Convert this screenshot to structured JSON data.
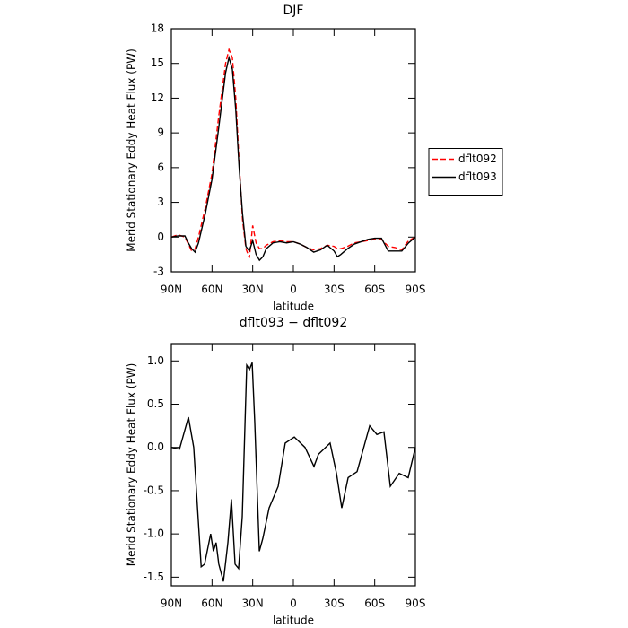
{
  "chart_data": [
    {
      "type": "line",
      "title": "DJF",
      "xlabel": "latitude",
      "ylabel": "Merid Stationary Eddy Heat Flux (PW)",
      "x": [
        90,
        85,
        80,
        77.5,
        75,
        72.5,
        70,
        65,
        60,
        55,
        50,
        47.5,
        45,
        42.5,
        40,
        37.5,
        35,
        32.5,
        30,
        27.5,
        25,
        22.5,
        20,
        15,
        10,
        5,
        0,
        -5,
        -10,
        -15,
        -20,
        -25,
        -30,
        -32.5,
        -35,
        -40,
        -45,
        -50,
        -55,
        -60,
        -65,
        -70,
        -75,
        -80,
        -85,
        -90
      ],
      "series": [
        {
          "name": "dflt092",
          "color": "#ff0000",
          "linestyle": "dashed",
          "values": [
            0,
            0.2,
            0,
            -0.6,
            -1.2,
            -1.0,
            0,
            2.5,
            5.5,
            10.5,
            15.0,
            16.2,
            15.5,
            12,
            6.5,
            1.5,
            -1.0,
            -1.8,
            1.0,
            -0.5,
            -1.0,
            -1.0,
            -0.7,
            -0.4,
            -0.3,
            -0.4,
            -0.4,
            -0.6,
            -0.9,
            -1.1,
            -1.0,
            -0.7,
            -0.8,
            -1.0,
            -1.0,
            -0.8,
            -0.5,
            -0.4,
            -0.3,
            -0.2,
            -0.2,
            -0.8,
            -0.9,
            -1.1,
            -0.3,
            0
          ]
        },
        {
          "name": "dflt093",
          "color": "#000000",
          "linestyle": "solid",
          "values": [
            0,
            0.1,
            0.1,
            -0.5,
            -1.0,
            -1.3,
            -0.5,
            2.0,
            5.0,
            9.5,
            14.2,
            15.5,
            14.5,
            11,
            6,
            2,
            -0.8,
            -1.2,
            -0.3,
            -1.5,
            -2.0,
            -1.7,
            -1.0,
            -0.5,
            -0.4,
            -0.5,
            -0.4,
            -0.6,
            -0.9,
            -1.3,
            -1.1,
            -0.7,
            -1.2,
            -1.7,
            -1.5,
            -1.0,
            -0.6,
            -0.4,
            -0.2,
            -0.1,
            -0.1,
            -1.2,
            -1.2,
            -1.2,
            -0.5,
            0
          ]
        }
      ],
      "xlim": [
        90,
        -90
      ],
      "xticks": [
        {
          "value": 90,
          "label": "90N"
        },
        {
          "value": 60,
          "label": "60N"
        },
        {
          "value": 30,
          "label": "30N"
        },
        0,
        {
          "value": -30,
          "label": "30S"
        },
        {
          "value": -60,
          "label": "60S"
        },
        {
          "value": -90,
          "label": "90S"
        }
      ],
      "ylim": [
        -3,
        18
      ],
      "yticks": [
        -3,
        0,
        3,
        6,
        9,
        12,
        15,
        18
      ],
      "legend": "right"
    },
    {
      "type": "line",
      "title": "dflt093 − dflt092",
      "xlabel": "latitude",
      "ylabel": "Merid Stationary Eddy Heat Flux (PW)",
      "x": [
        90,
        84,
        77.4,
        73.5,
        68,
        65.5,
        61,
        59,
        57,
        55,
        51.6,
        48.3,
        45.7,
        43,
        40.4,
        37.7,
        34.4,
        32.4,
        30.4,
        28.5,
        25.1,
        22.5,
        17.9,
        11.2,
        6,
        -0.7,
        -8.6,
        -15.2,
        -18.5,
        -27.1,
        -31.8,
        -35.7,
        -40.4,
        -47,
        -56.3,
        -61.6,
        -66.8,
        -71.5,
        -78.1,
        -84.7,
        -90
      ],
      "series": [
        {
          "color": "#000000",
          "linestyle": "solid",
          "values": [
            0.0,
            -0.02,
            0.35,
            0.0,
            -1.38,
            -1.35,
            -1.0,
            -1.2,
            -1.1,
            -1.35,
            -1.55,
            -1.1,
            -0.6,
            -1.35,
            -1.4,
            -0.8,
            0.95,
            0.9,
            0.98,
            0.3,
            -1.2,
            -1.05,
            -0.7,
            -0.45,
            0.05,
            0.12,
            0.0,
            -0.22,
            -0.08,
            0.05,
            -0.3,
            -0.7,
            -0.35,
            -0.28,
            0.25,
            0.15,
            0.18,
            -0.45,
            -0.3,
            -0.35,
            0.0
          ]
        }
      ],
      "xlim": [
        90,
        -90
      ],
      "xticks": [
        {
          "value": 90,
          "label": "90N"
        },
        {
          "value": 60,
          "label": "60N"
        },
        {
          "value": 30,
          "label": "30N"
        },
        0,
        {
          "value": -30,
          "label": "30S"
        },
        {
          "value": -60,
          "label": "60S"
        },
        {
          "value": -90,
          "label": "90S"
        }
      ],
      "ylim": [
        -1.6,
        1.2
      ],
      "yticks": [
        {
          "value": -1.5,
          "label": "-1.5"
        },
        {
          "value": -1,
          "label": "-1.0"
        },
        -0.5,
        {
          "value": 0,
          "label": "0.0"
        },
        0.5,
        {
          "value": 1,
          "label": "1.0"
        }
      ]
    }
  ]
}
